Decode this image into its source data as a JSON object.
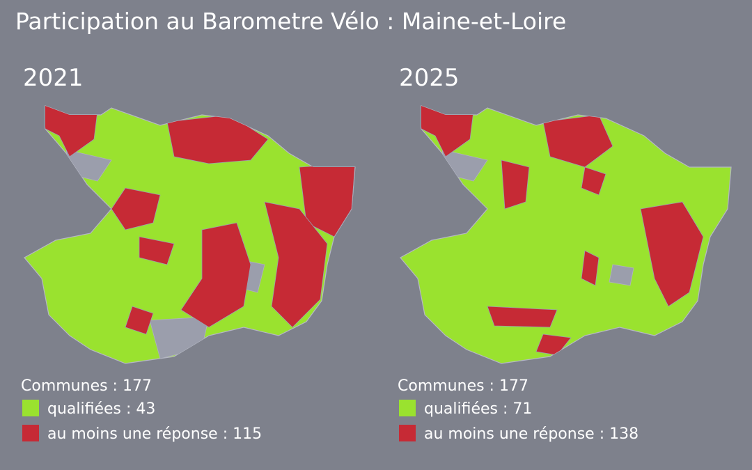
{
  "title": "Participation au Barometre Vélo : Maine-et-Loire",
  "panels": [
    {
      "year": "2021",
      "communes": "Communes : 177",
      "legend": [
        "qualifiées : 43",
        "au moins une réponse : 115"
      ]
    },
    {
      "year": "2025",
      "communes": "Communes : 177",
      "legend": [
        "qualifiées : 71",
        "au moins une réponse : 138"
      ]
    }
  ]
}
